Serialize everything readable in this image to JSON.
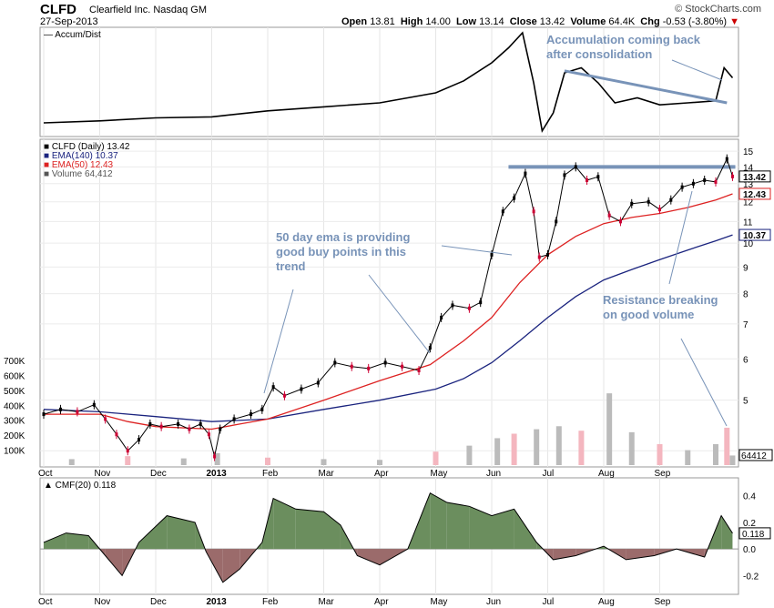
{
  "header": {
    "symbol": "CLFD",
    "company": "Clearfield Inc.",
    "exchange": "Nasdaq GM",
    "date": "27-Sep-2013",
    "brand": "© StockCharts.com",
    "open_label": "Open",
    "open": "13.81",
    "high_label": "High",
    "high": "14.00",
    "low_label": "Low",
    "low": "13.14",
    "close_label": "Close",
    "close": "13.42",
    "volume_label": "Volume",
    "volume": "64.4K",
    "chg_label": "Chg",
    "chg": "-0.53 (-3.80%)"
  },
  "colors": {
    "up": "#000000",
    "down": "#cc0033",
    "ema50": "#dd2222",
    "ema140": "#1a237e",
    "volume": "#bbbbbb",
    "volume_down": "#f4b6bf",
    "cmf_pos": "#6b8e5e",
    "cmf_neg": "#9b6b6b",
    "annotation": "#7893b8"
  },
  "chart_data": {
    "type": "line",
    "months": [
      "Oct",
      "Nov",
      "Dec",
      "2013",
      "Feb",
      "Mar",
      "Apr",
      "May",
      "Jun",
      "Jul",
      "Aug",
      "Sep"
    ],
    "price_panel": {
      "legend": [
        "CLFD (Daily) 13.42",
        "EMA(140) 10.37",
        "EMA(50) 12.43",
        "Volume 64,412"
      ],
      "y_ticks": [
        4,
        5,
        6,
        7,
        8,
        9,
        10,
        11,
        12,
        13,
        14,
        15
      ],
      "y_tick_labels": [
        "5",
        "6",
        "7",
        "8",
        "9",
        "10",
        "11",
        "12",
        "13",
        "14",
        "15"
      ],
      "ylim": [
        3.8,
        15.5
      ],
      "scale": "log",
      "last_close_label": "13.42",
      "ema50_label": "12.43",
      "ema140_label": "10.37",
      "close_series": [
        {
          "m": 0.0,
          "v": 4.7
        },
        {
          "m": 0.3,
          "v": 4.8
        },
        {
          "m": 0.6,
          "v": 4.75
        },
        {
          "m": 0.9,
          "v": 4.9
        },
        {
          "m": 1.1,
          "v": 4.6
        },
        {
          "m": 1.3,
          "v": 4.3
        },
        {
          "m": 1.5,
          "v": 4.0
        },
        {
          "m": 1.7,
          "v": 4.2
        },
        {
          "m": 1.9,
          "v": 4.5
        },
        {
          "m": 2.1,
          "v": 4.45
        },
        {
          "m": 2.4,
          "v": 4.5
        },
        {
          "m": 2.6,
          "v": 4.4
        },
        {
          "m": 2.8,
          "v": 4.5
        },
        {
          "m": 2.95,
          "v": 4.3
        },
        {
          "m": 3.05,
          "v": 3.9
        },
        {
          "m": 3.15,
          "v": 4.4
        },
        {
          "m": 3.4,
          "v": 4.6
        },
        {
          "m": 3.7,
          "v": 4.7
        },
        {
          "m": 3.9,
          "v": 4.8
        },
        {
          "m": 4.1,
          "v": 5.3
        },
        {
          "m": 4.3,
          "v": 5.1
        },
        {
          "m": 4.6,
          "v": 5.25
        },
        {
          "m": 4.9,
          "v": 5.4
        },
        {
          "m": 5.2,
          "v": 5.9
        },
        {
          "m": 5.5,
          "v": 5.8
        },
        {
          "m": 5.8,
          "v": 5.75
        },
        {
          "m": 6.1,
          "v": 5.9
        },
        {
          "m": 6.4,
          "v": 5.8
        },
        {
          "m": 6.7,
          "v": 5.7
        },
        {
          "m": 6.9,
          "v": 6.3
        },
        {
          "m": 7.1,
          "v": 7.2
        },
        {
          "m": 7.3,
          "v": 7.6
        },
        {
          "m": 7.6,
          "v": 7.5
        },
        {
          "m": 7.8,
          "v": 7.7
        },
        {
          "m": 8.0,
          "v": 9.5
        },
        {
          "m": 8.2,
          "v": 11.5
        },
        {
          "m": 8.4,
          "v": 12.2
        },
        {
          "m": 8.6,
          "v": 13.6
        },
        {
          "m": 8.75,
          "v": 11.5
        },
        {
          "m": 8.85,
          "v": 9.4
        },
        {
          "m": 9.0,
          "v": 9.5
        },
        {
          "m": 9.15,
          "v": 11.0
        },
        {
          "m": 9.3,
          "v": 13.5
        },
        {
          "m": 9.5,
          "v": 14.0
        },
        {
          "m": 9.7,
          "v": 13.2
        },
        {
          "m": 9.9,
          "v": 13.4
        },
        {
          "m": 10.1,
          "v": 11.3
        },
        {
          "m": 10.3,
          "v": 11.0
        },
        {
          "m": 10.5,
          "v": 11.9
        },
        {
          "m": 10.8,
          "v": 12.0
        },
        {
          "m": 11.0,
          "v": 11.6
        },
        {
          "m": 11.2,
          "v": 12.1
        },
        {
          "m": 11.4,
          "v": 12.8
        },
        {
          "m": 11.6,
          "v": 13.0
        },
        {
          "m": 11.8,
          "v": 13.2
        },
        {
          "m": 12.0,
          "v": 13.1
        },
        {
          "m": 12.2,
          "v": 14.5
        },
        {
          "m": 12.3,
          "v": 13.42
        }
      ],
      "ema50_series": [
        {
          "m": 0.0,
          "v": 4.7
        },
        {
          "m": 1.0,
          "v": 4.7
        },
        {
          "m": 1.5,
          "v": 4.55
        },
        {
          "m": 2.0,
          "v": 4.45
        },
        {
          "m": 3.0,
          "v": 4.4
        },
        {
          "m": 3.5,
          "v": 4.5
        },
        {
          "m": 4.0,
          "v": 4.6
        },
        {
          "m": 5.0,
          "v": 5.0
        },
        {
          "m": 6.0,
          "v": 5.45
        },
        {
          "m": 6.9,
          "v": 5.85
        },
        {
          "m": 7.5,
          "v": 6.5
        },
        {
          "m": 8.0,
          "v": 7.2
        },
        {
          "m": 8.5,
          "v": 8.4
        },
        {
          "m": 9.0,
          "v": 9.5
        },
        {
          "m": 9.5,
          "v": 10.3
        },
        {
          "m": 10.0,
          "v": 10.9
        },
        {
          "m": 10.5,
          "v": 11.2
        },
        {
          "m": 11.0,
          "v": 11.4
        },
        {
          "m": 11.5,
          "v": 11.7
        },
        {
          "m": 12.0,
          "v": 12.1
        },
        {
          "m": 12.3,
          "v": 12.43
        }
      ],
      "ema140_series": [
        {
          "m": 0.0,
          "v": 4.8
        },
        {
          "m": 1.0,
          "v": 4.75
        },
        {
          "m": 2.0,
          "v": 4.65
        },
        {
          "m": 3.0,
          "v": 4.55
        },
        {
          "m": 4.0,
          "v": 4.6
        },
        {
          "m": 5.0,
          "v": 4.8
        },
        {
          "m": 6.0,
          "v": 5.0
        },
        {
          "m": 7.0,
          "v": 5.25
        },
        {
          "m": 7.5,
          "v": 5.5
        },
        {
          "m": 8.0,
          "v": 5.9
        },
        {
          "m": 8.5,
          "v": 6.5
        },
        {
          "m": 9.0,
          "v": 7.2
        },
        {
          "m": 9.5,
          "v": 7.9
        },
        {
          "m": 10.0,
          "v": 8.5
        },
        {
          "m": 10.5,
          "v": 8.9
        },
        {
          "m": 11.0,
          "v": 9.3
        },
        {
          "m": 11.5,
          "v": 9.7
        },
        {
          "m": 12.0,
          "v": 10.1
        },
        {
          "m": 12.3,
          "v": 10.37
        }
      ],
      "resistance_level": 14.0,
      "volume_ticks": [
        "100K",
        "200K",
        "300K",
        "400K",
        "500K",
        "600K",
        "700K"
      ],
      "volume_max": 700000,
      "last_volume_label": "64412",
      "volume_series": [
        {
          "m": 0.5,
          "v": 40000
        },
        {
          "m": 1.5,
          "v": 60000
        },
        {
          "m": 2.5,
          "v": 45000
        },
        {
          "m": 3.1,
          "v": 80000
        },
        {
          "m": 4.0,
          "v": 50000
        },
        {
          "m": 5.0,
          "v": 40000
        },
        {
          "m": 6.0,
          "v": 35000
        },
        {
          "m": 7.0,
          "v": 90000
        },
        {
          "m": 7.6,
          "v": 130000
        },
        {
          "m": 8.1,
          "v": 180000
        },
        {
          "m": 8.4,
          "v": 210000
        },
        {
          "m": 8.8,
          "v": 240000
        },
        {
          "m": 9.2,
          "v": 260000
        },
        {
          "m": 9.6,
          "v": 230000
        },
        {
          "m": 10.1,
          "v": 480000
        },
        {
          "m": 10.5,
          "v": 220000
        },
        {
          "m": 11.0,
          "v": 140000
        },
        {
          "m": 11.5,
          "v": 100000
        },
        {
          "m": 12.0,
          "v": 140000
        },
        {
          "m": 12.2,
          "v": 250000
        },
        {
          "m": 12.3,
          "v": 64412
        }
      ]
    },
    "accum_panel": {
      "legend": "Accum/Dist",
      "series": [
        {
          "m": 0.0,
          "v": 10
        },
        {
          "m": 1.0,
          "v": 12
        },
        {
          "m": 2.0,
          "v": 15
        },
        {
          "m": 3.0,
          "v": 16
        },
        {
          "m": 4.0,
          "v": 22
        },
        {
          "m": 5.0,
          "v": 26
        },
        {
          "m": 6.0,
          "v": 30
        },
        {
          "m": 7.0,
          "v": 40
        },
        {
          "m": 7.5,
          "v": 52
        },
        {
          "m": 8.0,
          "v": 70
        },
        {
          "m": 8.3,
          "v": 85
        },
        {
          "m": 8.55,
          "v": 100
        },
        {
          "m": 8.75,
          "v": 50
        },
        {
          "m": 8.9,
          "v": 2
        },
        {
          "m": 9.1,
          "v": 20
        },
        {
          "m": 9.3,
          "v": 60
        },
        {
          "m": 9.6,
          "v": 65
        },
        {
          "m": 9.9,
          "v": 50
        },
        {
          "m": 10.2,
          "v": 30
        },
        {
          "m": 10.6,
          "v": 35
        },
        {
          "m": 11.0,
          "v": 28
        },
        {
          "m": 11.5,
          "v": 30
        },
        {
          "m": 12.0,
          "v": 32
        },
        {
          "m": 12.15,
          "v": 65
        },
        {
          "m": 12.3,
          "v": 55
        }
      ]
    },
    "cmf_panel": {
      "legend": "CMF(20) 0.118",
      "y_ticks": [
        -0.2,
        0.0,
        0.2,
        0.4
      ],
      "y_tick_labels": [
        "-0.2",
        "0.0",
        "0.2",
        "0.4"
      ],
      "ylim": [
        -0.32,
        0.5
      ],
      "last_value_label": "0.118",
      "series": [
        {
          "m": 0.0,
          "v": 0.05
        },
        {
          "m": 0.4,
          "v": 0.12
        },
        {
          "m": 0.8,
          "v": 0.1
        },
        {
          "m": 1.1,
          "v": -0.05
        },
        {
          "m": 1.4,
          "v": -0.2
        },
        {
          "m": 1.7,
          "v": 0.05
        },
        {
          "m": 2.2,
          "v": 0.25
        },
        {
          "m": 2.7,
          "v": 0.2
        },
        {
          "m": 2.9,
          "v": -0.02
        },
        {
          "m": 3.2,
          "v": -0.25
        },
        {
          "m": 3.5,
          "v": -0.15
        },
        {
          "m": 3.9,
          "v": 0.05
        },
        {
          "m": 4.1,
          "v": 0.38
        },
        {
          "m": 4.5,
          "v": 0.3
        },
        {
          "m": 5.0,
          "v": 0.28
        },
        {
          "m": 5.3,
          "v": 0.18
        },
        {
          "m": 5.6,
          "v": -0.05
        },
        {
          "m": 6.0,
          "v": -0.12
        },
        {
          "m": 6.5,
          "v": 0.0
        },
        {
          "m": 6.9,
          "v": 0.42
        },
        {
          "m": 7.2,
          "v": 0.35
        },
        {
          "m": 7.6,
          "v": 0.32
        },
        {
          "m": 8.0,
          "v": 0.25
        },
        {
          "m": 8.4,
          "v": 0.3
        },
        {
          "m": 8.8,
          "v": 0.05
        },
        {
          "m": 9.1,
          "v": -0.08
        },
        {
          "m": 9.5,
          "v": -0.05
        },
        {
          "m": 10.0,
          "v": 0.02
        },
        {
          "m": 10.4,
          "v": -0.08
        },
        {
          "m": 10.9,
          "v": -0.05
        },
        {
          "m": 11.3,
          "v": 0.0
        },
        {
          "m": 11.8,
          "v": -0.06
        },
        {
          "m": 12.1,
          "v": 0.25
        },
        {
          "m": 12.3,
          "v": 0.118
        }
      ]
    },
    "annotations": [
      {
        "lines": [
          "Accumulation coming back",
          "after consolidation"
        ]
      },
      {
        "lines": [
          "50 day ema is providing",
          "good buy points in this",
          "trend"
        ]
      },
      {
        "lines": [
          "Resistance breaking",
          "on good volume"
        ]
      }
    ]
  }
}
